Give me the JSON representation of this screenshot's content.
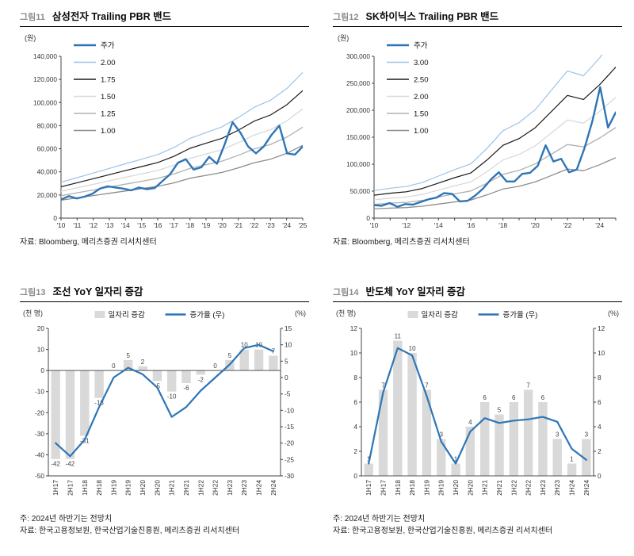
{
  "page": {
    "background": "#ffffff"
  },
  "colors": {
    "price_blue": "#2e75b6",
    "band_light_blue": "#9dc3e6",
    "band_black": "#1a1a1a",
    "band_gray_light": "#d9d9d9",
    "band_gray_mid": "#b0b0b0",
    "band_gray_dark": "#8c8c8c",
    "bar_gray": "#d9d9d9"
  },
  "chart_data": [
    {
      "id": "fig11",
      "tag": "그림11",
      "title": "삼성전자 Trailing PBR 밴드",
      "type": "line",
      "y_unit": "(원)",
      "source": "자료: Bloomberg, 메리츠증권 리서치센터",
      "ylim": [
        0,
        140000
      ],
      "y_ticks": [
        {
          "v": 0,
          "label": "0"
        },
        {
          "v": 20000,
          "label": "20,000"
        },
        {
          "v": 40000,
          "label": "40,000"
        },
        {
          "v": 60000,
          "label": "60,000"
        },
        {
          "v": 80000,
          "label": "80,000"
        },
        {
          "v": 100000,
          "label": "100,000"
        },
        {
          "v": 120000,
          "label": "120,000"
        },
        {
          "v": 140000,
          "label": "140,000"
        }
      ],
      "x_ticks": [
        "'10",
        "'11",
        "'12",
        "'13",
        "'14",
        "'15",
        "'16",
        "'17",
        "'18",
        "'19",
        "'20",
        "'21",
        "'22",
        "'23",
        "'24",
        "'25"
      ],
      "series": [
        {
          "name": "주가",
          "color": "#2e75b6",
          "width": 2.4,
          "values": [
            16000,
            19000,
            17000,
            18500,
            21000,
            25500,
            27500,
            26500,
            25500,
            24000,
            26500,
            25000,
            26000,
            32000,
            38000,
            48000,
            51000,
            42000,
            44000,
            53000,
            47000,
            64000,
            83000,
            74000,
            62000,
            56000,
            62000,
            72000,
            80000,
            56000,
            55000,
            62000
          ]
        },
        {
          "name": "2.00",
          "color": "#9dc3e6",
          "width": 1.2,
          "values": [
            31000,
            35000,
            39000,
            43000,
            47000,
            51000,
            55000,
            61000,
            69000,
            74000,
            79000,
            87000,
            96000,
            102000,
            112000,
            126000
          ]
        },
        {
          "name": "1.75",
          "color": "#1a1a1a",
          "width": 1.2,
          "values": [
            27125,
            30625,
            34125,
            37625,
            41125,
            44625,
            48125,
            53375,
            60375,
            64750,
            69125,
            76125,
            84000,
            89250,
            98000,
            110250
          ]
        },
        {
          "name": "1.50",
          "color": "#d9d9d9",
          "width": 1.3,
          "values": [
            23250,
            26250,
            29250,
            32250,
            35250,
            38250,
            41250,
            45750,
            51750,
            55500,
            59250,
            65250,
            72000,
            76500,
            84000,
            94500
          ]
        },
        {
          "name": "1.25",
          "color": "#b0b0b0",
          "width": 1.3,
          "values": [
            19375,
            21875,
            24375,
            26875,
            29375,
            31875,
            34375,
            38125,
            43125,
            46250,
            49375,
            54375,
            60000,
            63750,
            70000,
            78750
          ]
        },
        {
          "name": "1.00",
          "color": "#8c8c8c",
          "width": 1.3,
          "values": [
            15500,
            17500,
            19500,
            21500,
            23500,
            25500,
            27500,
            30500,
            34500,
            37000,
            39500,
            43500,
            48000,
            51000,
            56000,
            63000
          ]
        }
      ]
    },
    {
      "id": "fig12",
      "tag": "그림12",
      "title": "SK하이닉스 Trailing PBR 밴드",
      "type": "line",
      "y_unit": "(원)",
      "source": "자료: Bloomberg, 메리츠증권 리서치센터",
      "ylim": [
        0,
        300000
      ],
      "y_ticks": [
        {
          "v": 0,
          "label": "0"
        },
        {
          "v": 50000,
          "label": "50,000"
        },
        {
          "v": 100000,
          "label": "100,000"
        },
        {
          "v": 150000,
          "label": "150,000"
        },
        {
          "v": 200000,
          "label": "200,000"
        },
        {
          "v": 250000,
          "label": "250,000"
        },
        {
          "v": 300000,
          "label": "300,000"
        }
      ],
      "x_ticks": [
        "'10",
        "",
        "'12",
        "",
        "'14",
        "",
        "'16",
        "",
        "'18",
        "",
        "'20",
        "",
        "'22",
        "",
        "'24",
        ""
      ],
      "series": [
        {
          "name": "주가",
          "color": "#2e75b6",
          "width": 2.4,
          "values": [
            24000,
            23000,
            28000,
            21000,
            26000,
            25000,
            30000,
            35000,
            38000,
            46500,
            45000,
            31000,
            32000,
            42000,
            55000,
            72000,
            85000,
            68000,
            68000,
            82000,
            84000,
            97000,
            135000,
            105000,
            110000,
            85000,
            90000,
            130000,
            180000,
            243000,
            168000,
            196000
          ]
        },
        {
          "name": "3.00",
          "color": "#9dc3e6",
          "width": 1.2,
          "values": [
            51000,
            55500,
            58500,
            66000,
            78000,
            90000,
            100500,
            129000,
            162000,
            177000,
            201000,
            237000,
            273000,
            264000,
            297000,
            336000
          ]
        },
        {
          "name": "2.50",
          "color": "#1a1a1a",
          "width": 1.2,
          "values": [
            42500,
            46250,
            48750,
            55000,
            65000,
            75000,
            83750,
            107500,
            135000,
            147500,
            167500,
            197500,
            227500,
            220000,
            247500,
            280000
          ]
        },
        {
          "name": "2.00",
          "color": "#d9d9d9",
          "width": 1.3,
          "values": [
            34000,
            37000,
            39000,
            44000,
            52000,
            60000,
            67000,
            86000,
            108000,
            118000,
            134000,
            158000,
            182000,
            176000,
            198000,
            224000
          ]
        },
        {
          "name": "1.50",
          "color": "#b0b0b0",
          "width": 1.3,
          "values": [
            25500,
            27750,
            29250,
            33000,
            39000,
            45000,
            50250,
            64500,
            81000,
            88500,
            100500,
            118500,
            136500,
            132000,
            148500,
            168000
          ]
        },
        {
          "name": "1.00",
          "color": "#8c8c8c",
          "width": 1.3,
          "values": [
            17000,
            18500,
            19500,
            22000,
            26000,
            30000,
            33500,
            43000,
            54000,
            59000,
            67000,
            79000,
            91000,
            88000,
            99000,
            112000
          ]
        }
      ]
    },
    {
      "id": "fig13",
      "tag": "그림13",
      "title": "조선 YoY 일자리 증감",
      "type": "bar",
      "y_unit": "(천 명)",
      "y2_unit": "(%)",
      "note": "주: 2024년 하반기는 전망치",
      "source": "자료: 한국고용정보원, 한국산업기술진흥원, 메리츠증권 리서치센터",
      "categories": [
        "1H17",
        "2H17",
        "1H18",
        "2H18",
        "1H19",
        "2H19",
        "1H20",
        "2H20",
        "1H21",
        "2H21",
        "1H22",
        "2H22",
        "1H23",
        "2H23",
        "1H24",
        "2H24"
      ],
      "bar": {
        "name": "일자리 증감",
        "color": "#d9d9d9",
        "values": [
          -42,
          -42,
          -31,
          -13,
          0,
          5,
          2,
          -5,
          -10,
          -6,
          -2,
          0,
          5,
          10,
          10,
          7
        ]
      },
      "line": {
        "name": "증가율 (우)",
        "color": "#2e75b6",
        "values": [
          -20,
          -24,
          -19,
          -9,
          0,
          3,
          1,
          -3,
          -12,
          -9,
          -4,
          0,
          4,
          9,
          10,
          8
        ]
      },
      "ylim_left": [
        -50,
        20
      ],
      "yticks_left": [
        20,
        10,
        0,
        -10,
        -20,
        -30,
        -40,
        -50
      ],
      "ylim_right": [
        -30,
        15
      ],
      "yticks_right": [
        15,
        10,
        5,
        0,
        -5,
        -10,
        -15,
        -20,
        -25,
        -30
      ]
    },
    {
      "id": "fig14",
      "tag": "그림14",
      "title": "반도체 YoY 일자리 증감",
      "type": "bar",
      "y_unit": "(천 명)",
      "y2_unit": "(%)",
      "note": "주: 2024년 하반기는 전망치",
      "source": "자료: 한국고용정보원, 한국산업기술진흥원, 메리츠증권 리서치센터",
      "categories": [
        "1H17",
        "2H17",
        "1H18",
        "2H18",
        "1H19",
        "2H19",
        "1H20",
        "2H20",
        "1H21",
        "2H21",
        "1H22",
        "2H22",
        "1H23",
        "2H23",
        "1H24",
        "2H24"
      ],
      "bar": {
        "name": "일자리 증감",
        "color": "#d9d9d9",
        "values": [
          1,
          7,
          11,
          10,
          7,
          3,
          1,
          4,
          6,
          5,
          6,
          7,
          6,
          3,
          1,
          3
        ]
      },
      "line": {
        "name": "증가율 (우)",
        "color": "#2e75b6",
        "values": [
          1.0,
          6.8,
          10.4,
          9.8,
          6.5,
          2.8,
          1.0,
          3.6,
          4.7,
          4.3,
          4.5,
          4.6,
          4.8,
          4.4,
          2.2,
          1.3
        ]
      },
      "ylim_left": [
        0,
        12
      ],
      "yticks_left": [
        0,
        2,
        4,
        6,
        8,
        10,
        12
      ],
      "ylim_right": [
        0,
        12
      ],
      "yticks_right": [
        0,
        2,
        4,
        6,
        8,
        10,
        12
      ]
    }
  ]
}
